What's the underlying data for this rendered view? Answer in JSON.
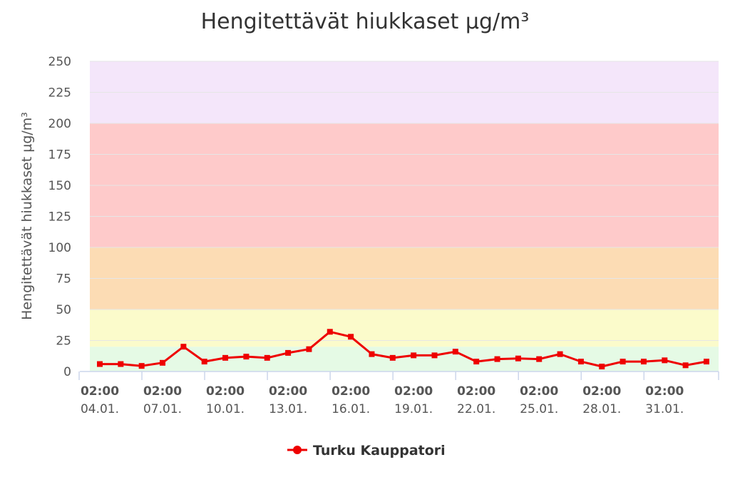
{
  "chart_data": {
    "type": "line",
    "title": "Hengitettävät hiukkaset µg/m³",
    "ylabel": "Hengitettävät hiukkaset µg/m³",
    "xlabel": "",
    "ylim": [
      0,
      250
    ],
    "yticks": [
      0,
      25,
      50,
      75,
      100,
      125,
      150,
      175,
      200,
      225,
      250
    ],
    "grid": true,
    "legend_position": "bottom-center",
    "bands": [
      {
        "from": 0,
        "to": 20,
        "color": "#e5fae5"
      },
      {
        "from": 20,
        "to": 50,
        "color": "#fbfbcb"
      },
      {
        "from": 50,
        "to": 100,
        "color": "#fcdcb4"
      },
      {
        "from": 100,
        "to": 200,
        "color": "#fecaca"
      },
      {
        "from": 200,
        "to": 250,
        "color": "#f4e6fa"
      }
    ],
    "x_tick_labels": [
      {
        "time": "02:00",
        "date": "04.01.",
        "day": 4
      },
      {
        "time": "02:00",
        "date": "07.01.",
        "day": 7
      },
      {
        "time": "02:00",
        "date": "10.01.",
        "day": 10
      },
      {
        "time": "02:00",
        "date": "13.01.",
        "day": 13
      },
      {
        "time": "02:00",
        "date": "16.01.",
        "day": 16
      },
      {
        "time": "02:00",
        "date": "19.01.",
        "day": 19
      },
      {
        "time": "02:00",
        "date": "22.01.",
        "day": 22
      },
      {
        "time": "02:00",
        "date": "25.01.",
        "day": 25
      },
      {
        "time": "02:00",
        "date": "28.01.",
        "day": 28
      },
      {
        "time": "02:00",
        "date": "31.01.",
        "day": 31
      }
    ],
    "series": [
      {
        "name": "Turku Kauppatori",
        "color": "#ee0000",
        "x": [
          4,
          5,
          6,
          7,
          8,
          9,
          10,
          11,
          12,
          13,
          14,
          15,
          16,
          17,
          18,
          19,
          20,
          21,
          22,
          23,
          24,
          25,
          26,
          27,
          28,
          29,
          30,
          31,
          32,
          33
        ],
        "values": [
          6,
          6,
          4.5,
          7,
          20,
          8,
          11,
          12,
          11,
          15,
          18,
          32,
          28,
          14,
          11,
          13,
          13,
          16,
          8,
          10,
          10.5,
          10,
          14,
          8,
          4,
          8,
          8,
          9,
          5,
          8
        ]
      }
    ]
  }
}
